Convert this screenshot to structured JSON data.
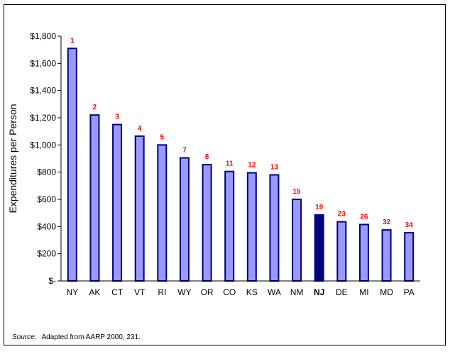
{
  "chart_data": {
    "type": "bar",
    "title": "",
    "xlabel": "",
    "ylabel": "Expenditures per Person",
    "ylim": [
      0,
      1800
    ],
    "yticks": [
      0,
      200,
      400,
      600,
      800,
      1000,
      1200,
      1400,
      1600,
      1800
    ],
    "ytick_labels": [
      "$-",
      "$200",
      "$400",
      "$600",
      "$800",
      "$1,000",
      "$1,200",
      "$1,400",
      "$1,600",
      "$1,800"
    ],
    "grid": false,
    "legend": "none",
    "categories": [
      "NY",
      "AK",
      "CT",
      "VT",
      "RI",
      "WY",
      "OR",
      "CO",
      "KS",
      "WA",
      "NM",
      "NJ",
      "DE",
      "MI",
      "MD",
      "PA"
    ],
    "values": [
      1710,
      1220,
      1150,
      1065,
      1000,
      905,
      855,
      805,
      795,
      780,
      600,
      485,
      435,
      415,
      375,
      355
    ],
    "rank_labels": [
      "1",
      "2",
      "3",
      "4",
      "5",
      "7",
      "8",
      "11",
      "12",
      "13",
      "15",
      "19",
      "23",
      "26",
      "32",
      "34"
    ],
    "highlight_category": "NJ",
    "colors": {
      "bar_fill": "#9999ff",
      "bar_stroke": "#000080",
      "highlight_fill": "#000080",
      "rank_label": "#ff0000",
      "axis": "#000000"
    }
  },
  "source": {
    "label": "Source:",
    "text": "Adapted from AARP 2000, 231."
  }
}
